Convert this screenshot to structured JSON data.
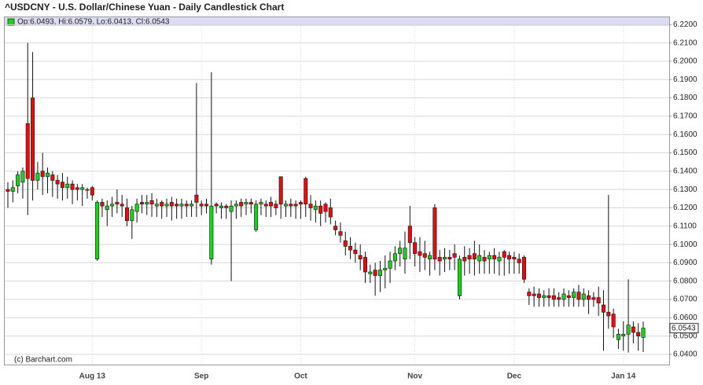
{
  "chart_data": {
    "type": "candlestick",
    "title": "^USDCNY - U.S. Dollar/Chinese Yuan - Daily Candlestick Chart",
    "legend_text": "Op:6.0493, Hi:6.0579, Lo:6.0413, Cl:6.0543",
    "source": "(c) Barchart.com",
    "up_color": "#22cc22",
    "down_color": "#dd1111",
    "grid": true,
    "categories": [
      null,
      null,
      null,
      null,
      null,
      null,
      null,
      null,
      null,
      null,
      null,
      null,
      null,
      null,
      null,
      null,
      null,
      "Aug 13",
      null,
      null,
      null,
      null,
      null,
      null,
      null,
      null,
      null,
      null,
      null,
      null,
      null,
      null,
      null,
      null,
      null,
      null,
      null,
      null,
      null,
      "Sep",
      null,
      null,
      null,
      null,
      null,
      null,
      null,
      null,
      null,
      null,
      null,
      null,
      null,
      null,
      null,
      null,
      null,
      null,
      null,
      "Oct",
      null,
      null,
      null,
      null,
      null,
      null,
      null,
      null,
      null,
      null,
      null,
      null,
      null,
      null,
      null,
      null,
      null,
      null,
      null,
      null,
      null,
      null,
      "Nov",
      null,
      null,
      null,
      null,
      null,
      null,
      null,
      null,
      null,
      null,
      null,
      null,
      null,
      null,
      null,
      null,
      null,
      null,
      null,
      "Dec",
      null,
      null,
      null,
      null,
      null,
      null,
      null,
      null,
      null,
      null,
      null,
      null,
      null,
      null,
      null,
      null,
      null,
      null,
      null,
      null,
      null,
      "Jan 14",
      null,
      null,
      null,
      null
    ],
    "open": [
      6.13,
      6.129,
      6.132,
      6.134,
      6.166,
      6.18,
      6.135,
      6.14,
      6.137,
      6.138,
      6.135,
      6.134,
      6.131,
      6.133,
      6.131,
      6.13,
      6.13,
      6.131,
      6.092,
      6.123,
      6.119,
      6.121,
      6.123,
      6.122,
      6.12,
      6.113,
      6.118,
      6.123,
      6.122,
      6.124,
      6.121,
      6.123,
      6.121,
      6.123,
      6.122,
      6.121,
      6.122,
      6.121,
      6.127,
      6.122,
      6.122,
      6.092,
      6.122,
      6.12,
      6.121,
      6.118,
      6.121,
      6.123,
      6.122,
      6.123,
      6.108,
      6.122,
      6.122,
      6.123,
      6.122,
      6.137,
      6.121,
      6.122,
      6.122,
      6.123,
      6.136,
      6.122,
      6.119,
      6.121,
      6.122,
      6.12,
      6.11,
      6.107,
      6.102,
      6.099,
      6.097,
      6.094,
      6.093,
      6.084,
      6.086,
      6.083,
      6.086,
      6.087,
      6.091,
      6.095,
      6.092,
      6.11,
      6.101,
      6.096,
      6.095,
      6.092,
      6.12,
      6.093,
      6.092,
      6.093,
      6.095,
      6.072,
      6.093,
      6.094,
      6.095,
      6.091,
      6.093,
      6.092,
      6.094,
      6.091,
      6.096,
      6.094,
      6.093,
      6.092,
      6.093,
      6.074,
      6.073,
      6.073,
      6.071,
      6.072,
      6.072,
      6.071,
      6.07,
      6.072,
      6.071,
      6.074,
      6.07,
      6.072,
      6.071,
      6.071,
      6.067,
      6.063,
      6.062,
      6.048,
      6.05,
      6.051,
      6.055,
      6.052,
      6.0493
    ],
    "high": [
      6.134,
      6.135,
      6.14,
      6.142,
      6.21,
      6.205,
      6.145,
      6.15,
      6.142,
      6.14,
      6.138,
      6.139,
      6.137,
      6.135,
      6.133,
      6.133,
      6.131,
      6.132,
      6.124,
      6.125,
      6.124,
      6.126,
      6.13,
      6.127,
      6.125,
      6.121,
      6.125,
      6.127,
      6.127,
      6.128,
      6.125,
      6.124,
      6.125,
      6.126,
      6.125,
      6.125,
      6.124,
      6.124,
      6.188,
      6.124,
      6.125,
      6.194,
      6.123,
      6.123,
      6.122,
      6.124,
      6.124,
      6.125,
      6.125,
      6.125,
      6.124,
      6.125,
      6.124,
      6.126,
      6.124,
      6.137,
      6.124,
      6.125,
      6.124,
      6.124,
      6.137,
      6.127,
      6.124,
      6.124,
      6.123,
      6.125,
      6.113,
      6.112,
      6.107,
      6.104,
      6.101,
      6.1,
      6.096,
      6.089,
      6.09,
      6.091,
      6.094,
      6.096,
      6.099,
      6.102,
      6.107,
      6.121,
      6.104,
      6.104,
      6.102,
      6.096,
      6.122,
      6.097,
      6.098,
      6.097,
      6.1,
      6.094,
      6.099,
      6.098,
      6.102,
      6.1,
      6.097,
      6.096,
      6.098,
      6.096,
      6.097,
      6.096,
      6.096,
      6.095,
      6.094,
      6.076,
      6.077,
      6.076,
      6.075,
      6.076,
      6.076,
      6.074,
      6.076,
      6.075,
      6.076,
      6.078,
      6.076,
      6.075,
      6.074,
      6.077,
      6.075,
      6.127,
      6.065,
      6.054,
      6.058,
      6.081,
      6.058,
      6.057,
      6.0579
    ],
    "low": [
      6.12,
      6.123,
      6.128,
      6.125,
      6.116,
      6.124,
      6.13,
      6.127,
      6.128,
      6.126,
      6.125,
      6.124,
      6.125,
      6.122,
      6.124,
      6.121,
      6.125,
      6.124,
      6.091,
      6.115,
      6.11,
      6.115,
      6.117,
      6.115,
      6.11,
      6.103,
      6.112,
      6.117,
      6.116,
      6.115,
      6.115,
      6.114,
      6.115,
      6.113,
      6.114,
      6.114,
      6.115,
      6.115,
      6.115,
      6.116,
      6.117,
      6.089,
      6.117,
      6.114,
      6.114,
      6.08,
      6.114,
      6.115,
      6.116,
      6.117,
      6.107,
      6.116,
      6.115,
      6.115,
      6.116,
      6.114,
      6.115,
      6.115,
      6.114,
      6.114,
      6.115,
      6.113,
      6.112,
      6.11,
      6.112,
      6.111,
      6.105,
      6.101,
      6.094,
      6.092,
      6.09,
      6.086,
      6.079,
      6.079,
      6.072,
      6.074,
      6.076,
      6.079,
      6.086,
      6.088,
      6.084,
      6.092,
      6.088,
      6.085,
      6.086,
      6.083,
      6.086,
      6.083,
      6.085,
      6.086,
      6.086,
      6.07,
      6.083,
      6.084,
      6.083,
      6.084,
      6.084,
      6.084,
      6.084,
      6.083,
      6.083,
      6.084,
      6.084,
      6.084,
      6.079,
      6.067,
      6.066,
      6.066,
      6.066,
      6.066,
      6.066,
      6.066,
      6.066,
      6.066,
      6.066,
      6.066,
      6.066,
      6.062,
      6.066,
      6.061,
      6.042,
      6.054,
      6.049,
      6.043,
      6.042,
      6.041,
      6.046,
      6.042,
      6.0413
    ],
    "close": [
      6.129,
      6.131,
      6.138,
      6.14,
      6.136,
      6.135,
      6.139,
      6.137,
      6.139,
      6.135,
      6.133,
      6.131,
      6.133,
      6.13,
      6.13,
      6.131,
      6.13,
      6.127,
      6.123,
      6.121,
      6.121,
      6.122,
      6.122,
      6.121,
      6.113,
      6.119,
      6.122,
      6.122,
      6.123,
      6.122,
      6.122,
      6.121,
      6.122,
      6.121,
      6.121,
      6.122,
      6.121,
      6.122,
      6.123,
      6.121,
      6.121,
      6.121,
      6.121,
      6.121,
      6.12,
      6.121,
      6.122,
      6.121,
      6.123,
      6.122,
      6.122,
      6.123,
      6.121,
      6.121,
      6.12,
      6.122,
      6.122,
      6.121,
      6.121,
      6.122,
      6.122,
      6.12,
      6.121,
      6.117,
      6.118,
      6.115,
      6.108,
      6.105,
      6.099,
      6.097,
      6.095,
      6.092,
      6.085,
      6.085,
      6.083,
      6.086,
      6.087,
      6.091,
      6.095,
      6.098,
      6.098,
      6.101,
      6.095,
      6.094,
      6.093,
      6.094,
      6.092,
      6.091,
      6.093,
      6.092,
      6.093,
      6.092,
      6.091,
      6.092,
      6.092,
      6.094,
      6.091,
      6.094,
      6.092,
      6.093,
      6.093,
      6.092,
      6.092,
      6.09,
      6.081,
      6.072,
      6.072,
      6.071,
      6.072,
      6.071,
      6.07,
      6.07,
      6.073,
      6.071,
      6.074,
      6.07,
      6.073,
      6.07,
      6.07,
      6.068,
      6.063,
      6.061,
      6.055,
      6.051,
      6.051,
      6.056,
      6.052,
      6.05,
      6.0543
    ],
    "ylim": [
      6.034,
      6.224
    ],
    "yticks": [
      {
        "value": 6.04,
        "label": "6.0400"
      },
      {
        "value": 6.05,
        "label": "6.0500"
      },
      {
        "value": 6.06,
        "label": "6.0600"
      },
      {
        "value": 6.07,
        "label": "6.0700"
      },
      {
        "value": 6.08,
        "label": "6.0800"
      },
      {
        "value": 6.09,
        "label": "6.0900"
      },
      {
        "value": 6.1,
        "label": "6.1000"
      },
      {
        "value": 6.11,
        "label": "6.1100"
      },
      {
        "value": 6.12,
        "label": "6.1200"
      },
      {
        "value": 6.13,
        "label": "6.1300"
      },
      {
        "value": 6.14,
        "label": "6.1400"
      },
      {
        "value": 6.15,
        "label": "6.1500"
      },
      {
        "value": 6.16,
        "label": "6.1600"
      },
      {
        "value": 6.17,
        "label": "6.1700"
      },
      {
        "value": 6.18,
        "label": "6.1800"
      },
      {
        "value": 6.19,
        "label": "6.1900"
      },
      {
        "value": 6.2,
        "label": "6.2000"
      },
      {
        "value": 6.21,
        "label": "6.2100"
      },
      {
        "value": 6.22,
        "label": "6.2200"
      }
    ]
  }
}
